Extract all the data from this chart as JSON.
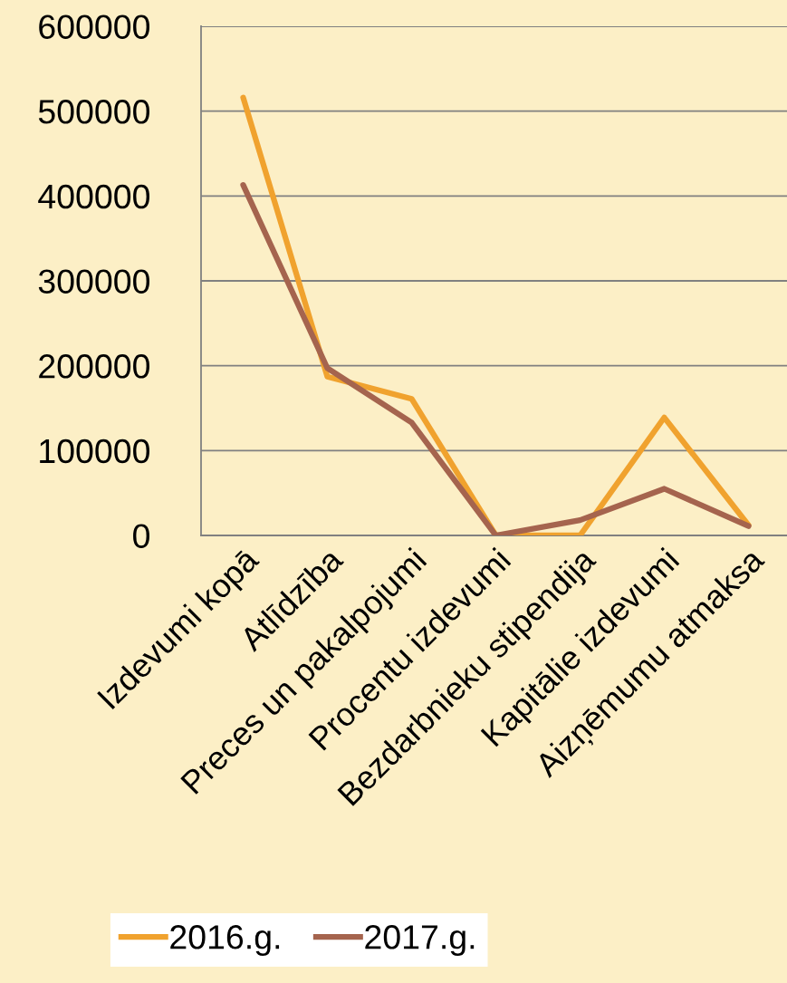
{
  "chart_data": {
    "type": "line",
    "categories": [
      "Izdevumi kopā",
      "Atlīdzība",
      "Preces un pakalpojumi",
      "Procentu izdevumi",
      "Bezdarbnieku stipendija",
      "Kapitālie izdevumi",
      "Aizņēmumu atmaksa"
    ],
    "series": [
      {
        "name": "2016.g.",
        "color": "#f0a22e",
        "values": [
          516000,
          187000,
          161000,
          0,
          0,
          139000,
          12000
        ]
      },
      {
        "name": "2017.g.",
        "color": "#a5644e",
        "values": [
          413000,
          197000,
          133000,
          0,
          18000,
          55000,
          11000
        ]
      }
    ],
    "ylim": [
      0,
      600000
    ],
    "yticks": [
      0,
      100000,
      200000,
      300000,
      400000,
      500000,
      600000
    ],
    "grid": "y",
    "legend": "bottom",
    "marker": "none",
    "line_style": "solid"
  }
}
